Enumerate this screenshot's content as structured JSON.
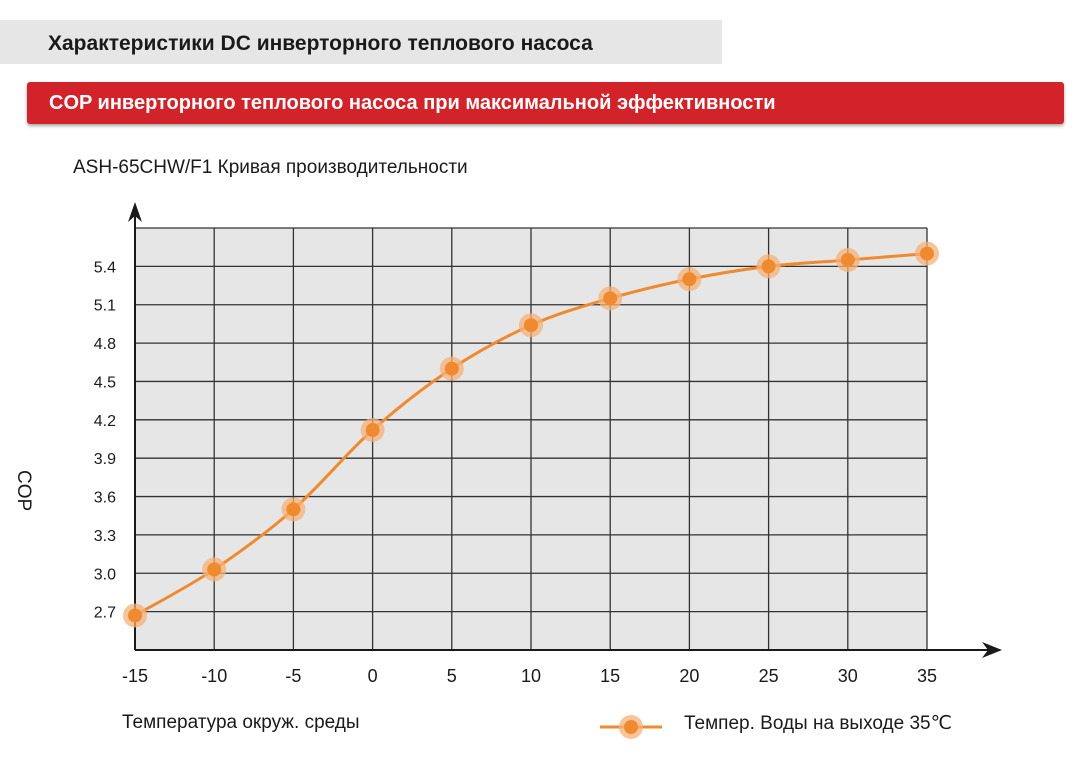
{
  "header": {
    "title": "Характеристики DC инверторного теплового насоса"
  },
  "banner": {
    "text": "COP инверторного теплового насоса при максимальной эффективности"
  },
  "colors": {
    "accent_red": "#d2232a",
    "series_orange": "#f08a2e",
    "plot_bg": "#e6e6e6"
  },
  "chart_data": {
    "type": "line",
    "title": "ASH-65CHW/F1 Кривая производительности",
    "xlabel": "Температура окруж. среды",
    "ylabel": "COP",
    "x": [
      -15,
      -10,
      -5,
      0,
      5,
      10,
      15,
      20,
      25,
      30,
      35
    ],
    "x_tick_labels": [
      "-15",
      "-10",
      "-5",
      "0",
      "5",
      "10",
      "15",
      "20",
      "25",
      "30",
      "35"
    ],
    "y_tick_labels": [
      "2.7",
      "3.0",
      "3.3",
      "3.6",
      "3.9",
      "4.2",
      "4.5",
      "4.8",
      "5.1",
      "5.4"
    ],
    "y_ticks": [
      2.7,
      3.0,
      3.3,
      3.6,
      3.9,
      4.2,
      4.5,
      4.8,
      5.1,
      5.4
    ],
    "xlim": [
      -15,
      35
    ],
    "ylim": [
      2.4,
      5.7
    ],
    "grid": true,
    "legend_position": "bottom-right",
    "series": [
      {
        "name": "Темпер. Воды на выходе 35℃",
        "values": [
          2.67,
          3.03,
          3.5,
          4.12,
          4.6,
          4.94,
          5.15,
          5.3,
          5.4,
          5.45,
          5.5
        ]
      }
    ]
  }
}
